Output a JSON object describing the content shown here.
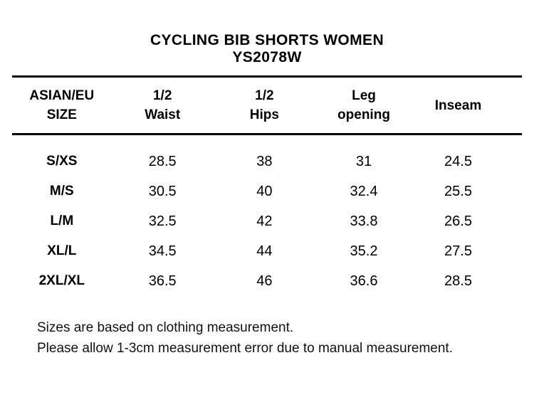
{
  "title": {
    "line1": "CYCLING BIB SHORTS WOMEN",
    "line2": "YS2078W"
  },
  "table": {
    "columns": [
      {
        "line1": "ASIAN/EU",
        "line2": "SIZE"
      },
      {
        "line1": "1/2",
        "line2": "Waist"
      },
      {
        "line1": "1/2",
        "line2": "Hips"
      },
      {
        "line1": "Leg",
        "line2": "opening"
      },
      {
        "line1": "Inseam",
        "line2": ""
      }
    ],
    "rows": [
      {
        "size": "S/XS",
        "half_waist": "28.5",
        "half_hips": "38",
        "leg_opening": "31",
        "inseam": "24.5"
      },
      {
        "size": "M/S",
        "half_waist": "30.5",
        "half_hips": "40",
        "leg_opening": "32.4",
        "inseam": "25.5"
      },
      {
        "size": "L/M",
        "half_waist": "32.5",
        "half_hips": "42",
        "leg_opening": "33.8",
        "inseam": "26.5"
      },
      {
        "size": "XL/L",
        "half_waist": "34.5",
        "half_hips": "44",
        "leg_opening": "35.2",
        "inseam": "27.5"
      },
      {
        "size": "2XL/XL",
        "half_waist": "36.5",
        "half_hips": "46",
        "leg_opening": "36.6",
        "inseam": "28.5"
      }
    ]
  },
  "notes": {
    "line1": "Sizes are based on clothing measurement.",
    "line2": "Please allow 1-3cm measurement error due to manual measurement."
  },
  "colors": {
    "background": "#ffffff",
    "text": "#000000",
    "rule": "#000000"
  }
}
